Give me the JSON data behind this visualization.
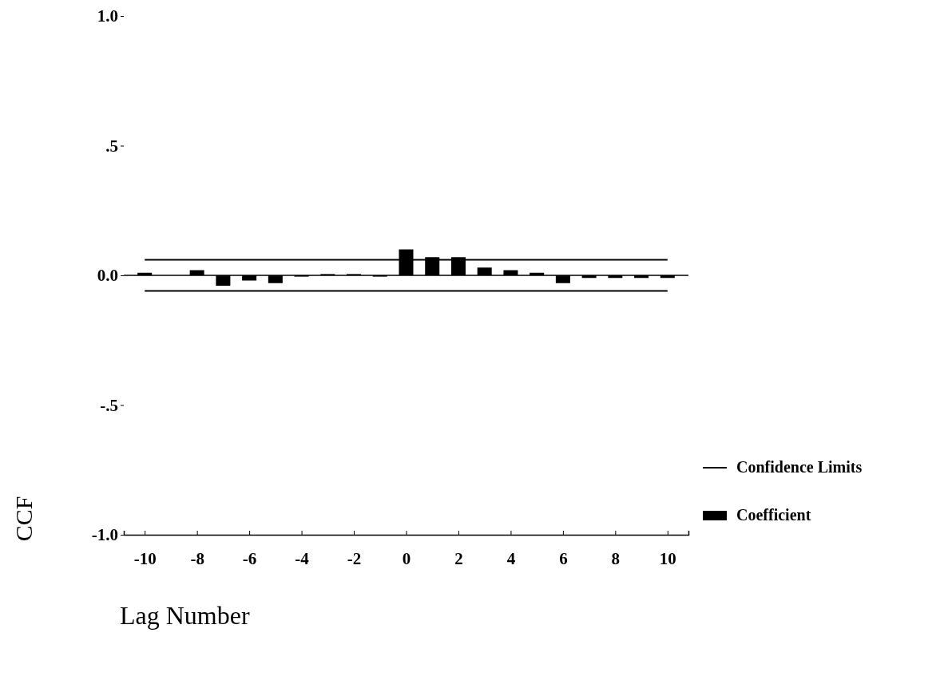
{
  "chart_data": {
    "type": "bar",
    "xlabel": "Lag Number",
    "ylabel": "CCF",
    "x": [
      -10,
      -9,
      -8,
      -7,
      -6,
      -5,
      -4,
      -3,
      -2,
      -1,
      0,
      1,
      2,
      3,
      4,
      5,
      6,
      7,
      8,
      9,
      10
    ],
    "series": [
      {
        "name": "Confidence Limits",
        "type": "line",
        "color": "#000000",
        "values": [
          0.06,
          0.06,
          0.06,
          0.06,
          0.06,
          0.06,
          0.06,
          0.06,
          0.06,
          0.06,
          0.06,
          0.06,
          0.06,
          0.06,
          0.06,
          0.06,
          0.06,
          0.06,
          0.06,
          0.06,
          0.06
        ]
      },
      {
        "name": "Coefficient",
        "color": "#000000",
        "values": [
          0.01,
          0,
          0.02,
          -0.04,
          -0.02,
          -0.03,
          -0.005,
          0.005,
          0.005,
          -0.005,
          0.1,
          0.07,
          0.07,
          0.03,
          0.02,
          0.01,
          -0.03,
          -0.01,
          -0.01,
          -0.01,
          -0.01
        ]
      },
      {
        "type": "line",
        "color": "#000000",
        "values": [
          -0.06,
          -0.06,
          -0.06,
          -0.06,
          -0.06,
          -0.06,
          -0.06,
          -0.06,
          -0.06,
          -0.06,
          -0.06,
          -0.06,
          -0.06,
          -0.06,
          -0.06,
          -0.06,
          -0.06,
          -0.06,
          -0.06,
          -0.06,
          -0.06
        ]
      }
    ],
    "xlim": [
      -10.8,
      10.8
    ],
    "xticks": [
      -10,
      -8,
      -6,
      -4,
      -2,
      0,
      2,
      4,
      6,
      8,
      10
    ],
    "ylim": [
      -1,
      1
    ],
    "yticks": [
      {
        "value": 1,
        "label": "1.0"
      },
      {
        "value": 0.5,
        "label": ".5"
      },
      {
        "value": 0,
        "label": "0.0"
      },
      {
        "value": -0.5,
        "label": "-.5"
      },
      {
        "value": -1,
        "label": "-1.0"
      }
    ],
    "legend": "right",
    "line_style": "solid"
  }
}
